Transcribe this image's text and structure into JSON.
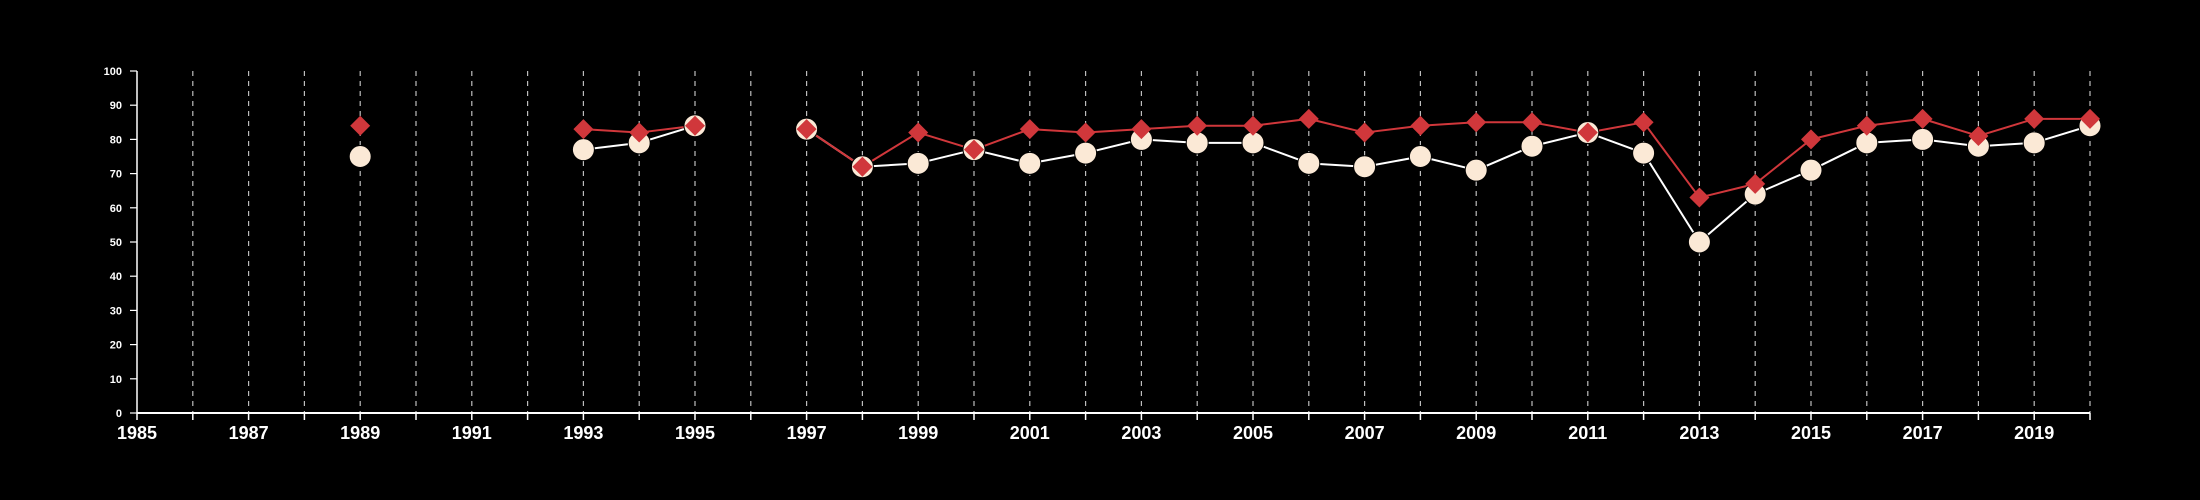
{
  "colors": {
    "background": "#000000",
    "axis": "#ffffff",
    "grid": "#bdbdbd",
    "series_red": "#d0373b",
    "series_cream": "#fbe9d6",
    "series_cream_line": "#ffffff"
  },
  "chart_data": {
    "type": "line",
    "title": "",
    "xlabel": "",
    "ylabel": "",
    "xlim": [
      1985,
      2020
    ],
    "ylim": [
      0,
      100
    ],
    "grid": "vertical dashed lines at every year",
    "legend": "none",
    "x_ticks": [
      1985,
      1987,
      1989,
      1991,
      1993,
      1995,
      1997,
      1999,
      2001,
      2003,
      2005,
      2007,
      2009,
      2011,
      2013,
      2015,
      2017,
      2019
    ],
    "y_ticks": [
      0,
      10,
      20,
      30,
      40,
      50,
      60,
      70,
      80,
      90,
      100
    ],
    "series": [
      {
        "marker": "diamond",
        "color": "#d0373b",
        "points": [
          [
            1989,
            84
          ],
          [
            1993,
            83
          ],
          [
            1994,
            82
          ],
          [
            1995,
            84
          ],
          [
            1997,
            83
          ],
          [
            1998,
            72
          ],
          [
            1999,
            82
          ],
          [
            2000,
            77
          ],
          [
            2001,
            83
          ],
          [
            2002,
            82
          ],
          [
            2003,
            83
          ],
          [
            2004,
            84
          ],
          [
            2005,
            84
          ],
          [
            2006,
            86
          ],
          [
            2007,
            82
          ],
          [
            2008,
            84
          ],
          [
            2009,
            85
          ],
          [
            2010,
            85
          ],
          [
            2011,
            82
          ],
          [
            2012,
            85
          ],
          [
            2013,
            63
          ],
          [
            2014,
            67
          ],
          [
            2015,
            80
          ],
          [
            2016,
            84
          ],
          [
            2017,
            86
          ],
          [
            2018,
            81
          ],
          [
            2019,
            86
          ],
          [
            2020,
            86
          ]
        ]
      },
      {
        "marker": "circle",
        "color": "#fbe9d6",
        "points": [
          [
            1989,
            75
          ],
          [
            1993,
            77
          ],
          [
            1994,
            79
          ],
          [
            1995,
            84
          ],
          [
            1997,
            83
          ],
          [
            1998,
            72
          ],
          [
            1999,
            73
          ],
          [
            2000,
            77
          ],
          [
            2001,
            73
          ],
          [
            2002,
            76
          ],
          [
            2003,
            80
          ],
          [
            2004,
            79
          ],
          [
            2005,
            79
          ],
          [
            2006,
            73
          ],
          [
            2007,
            72
          ],
          [
            2008,
            75
          ],
          [
            2009,
            71
          ],
          [
            2010,
            78
          ],
          [
            2011,
            82
          ],
          [
            2012,
            76
          ],
          [
            2013,
            50
          ],
          [
            2014,
            64
          ],
          [
            2015,
            71
          ],
          [
            2016,
            79
          ],
          [
            2017,
            80
          ],
          [
            2018,
            78
          ],
          [
            2019,
            79
          ],
          [
            2020,
            84
          ]
        ]
      }
    ]
  }
}
